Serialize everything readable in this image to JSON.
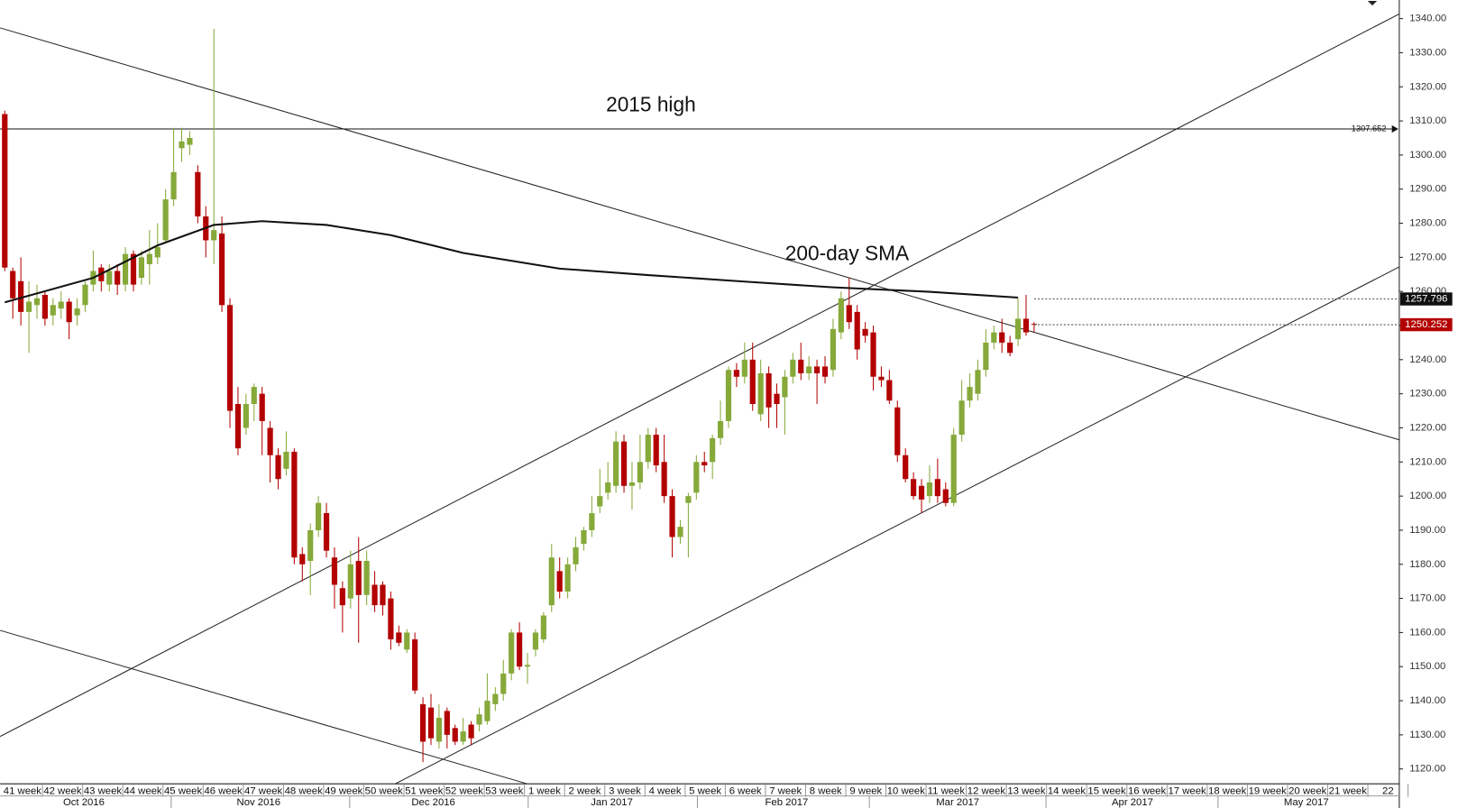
{
  "chart_data": {
    "type": "candlestick",
    "annotations": [
      "2015 high",
      "200-day SMA"
    ],
    "weeks": [
      "41 week",
      "42 week",
      "43 week",
      "44 week",
      "45 week",
      "46 week",
      "47 week",
      "48 week",
      "49 week",
      "50 week",
      "51 week",
      "52 week",
      "53 week",
      "1 week",
      "2 week",
      "3 week",
      "4 week",
      "5 week",
      "6 week",
      "7 week",
      "8 week",
      "9 week",
      "10 week",
      "11 week",
      "12 week",
      "13 week",
      "14 week",
      "15 week",
      "16 week",
      "17 week",
      "18 week",
      "19 week",
      "20 week",
      "21 week",
      "22"
    ],
    "months": [
      "Oct 2016",
      "Nov 2016",
      "Dec 2016",
      "Jan 2017",
      "Feb 2017",
      "Mar 2017",
      "Apr 2017",
      "May 2017"
    ],
    "ylim": [
      1120,
      1340
    ],
    "yticks": [
      {
        "value": 1120,
        "label": "1120.00"
      },
      {
        "value": 1130,
        "label": "1130.00"
      },
      {
        "value": 1140,
        "label": "1140.00"
      },
      {
        "value": 1150,
        "label": "1150.00"
      },
      {
        "value": 1160,
        "label": "1160.00"
      },
      {
        "value": 1170,
        "label": "1170.00"
      },
      {
        "value": 1180,
        "label": "1180.00"
      },
      {
        "value": 1190,
        "label": "1190.00"
      },
      {
        "value": 1200,
        "label": "1200.00"
      },
      {
        "value": 1210,
        "label": "1210.00"
      },
      {
        "value": 1220,
        "label": "1220.00"
      },
      {
        "value": 1230,
        "label": "1230.00"
      },
      {
        "value": 1240,
        "label": "1240.00"
      },
      {
        "value": 1250,
        "label": "1250.00"
      },
      {
        "value": 1260,
        "label": "1260.00"
      },
      {
        "value": 1270,
        "label": "1270.00"
      },
      {
        "value": 1280,
        "label": "1280.00"
      },
      {
        "value": 1290,
        "label": "1290.00"
      },
      {
        "value": 1300,
        "label": "1300.00"
      },
      {
        "value": 1310,
        "label": "1310.00"
      },
      {
        "value": 1320,
        "label": "1320.00"
      },
      {
        "value": 1330,
        "label": "1330.00"
      },
      {
        "value": 1340,
        "label": "1340.00"
      }
    ],
    "up_color": "#86a93a",
    "down_color": "#b30000",
    "hline": 1307.652,
    "price_markers": [
      {
        "value": 1257.796,
        "color": "#111111"
      },
      {
        "value": 1250.252,
        "color": "#b30000"
      }
    ],
    "sma": {
      "x": [
        0,
        11,
        19,
        26,
        32,
        40,
        48,
        57,
        69,
        80,
        92,
        103,
        115,
        126
      ],
      "values": [
        1256.8,
        1264,
        1273.5,
        1279.5,
        1280.6,
        1279.5,
        1276.5,
        1271.3,
        1266.7,
        1264.8,
        1262.9,
        1261.2,
        1259.9,
        1258.2
      ]
    },
    "candles": [
      [
        1312,
        1313,
        1266,
        1267
      ],
      [
        1266,
        1267,
        1252,
        1258
      ],
      [
        1263,
        1270,
        1250,
        1254
      ],
      [
        1254,
        1263,
        1242,
        1257
      ],
      [
        1256,
        1262,
        1252,
        1258
      ],
      [
        1259,
        1260,
        1250,
        1252
      ],
      [
        1253,
        1258,
        1250,
        1256
      ],
      [
        1255,
        1260,
        1252,
        1257
      ],
      [
        1257,
        1258,
        1246,
        1251
      ],
      [
        1253,
        1258,
        1250,
        1255
      ],
      [
        1256,
        1263,
        1254,
        1262
      ],
      [
        1262,
        1272,
        1260,
        1266
      ],
      [
        1267,
        1268,
        1260,
        1263
      ],
      [
        1262,
        1268,
        1260,
        1266
      ],
      [
        1266,
        1268,
        1259,
        1262
      ],
      [
        1262,
        1273,
        1260,
        1271
      ],
      [
        1271,
        1272,
        1260,
        1262
      ],
      [
        1264,
        1272,
        1262,
        1270
      ],
      [
        1268,
        1278,
        1262,
        1271
      ],
      [
        1270,
        1280,
        1268,
        1273
      ],
      [
        1275,
        1290,
        1274,
        1287
      ],
      [
        1287,
        1308,
        1285,
        1295
      ],
      [
        1302,
        1308,
        1298,
        1304
      ],
      [
        1303,
        1307,
        1300,
        1305
      ],
      [
        1295,
        1297,
        1280,
        1282
      ],
      [
        1282,
        1285,
        1270,
        1275
      ],
      [
        1275,
        1337,
        1268,
        1278
      ],
      [
        1277,
        1282,
        1254,
        1256
      ],
      [
        1256,
        1258,
        1220,
        1225
      ],
      [
        1227,
        1232,
        1212,
        1214
      ],
      [
        1220,
        1230,
        1218,
        1227
      ],
      [
        1227,
        1233,
        1222,
        1232
      ],
      [
        1230,
        1232,
        1212,
        1222
      ],
      [
        1220,
        1222,
        1204,
        1212
      ],
      [
        1212,
        1214,
        1202,
        1205
      ],
      [
        1208,
        1219,
        1206,
        1213
      ],
      [
        1213,
        1214,
        1180,
        1182
      ],
      [
        1183,
        1185,
        1175,
        1180
      ],
      [
        1181,
        1192,
        1171,
        1190
      ],
      [
        1190,
        1200,
        1188,
        1198
      ],
      [
        1195,
        1198,
        1182,
        1184
      ],
      [
        1182,
        1185,
        1167,
        1174
      ],
      [
        1173,
        1175,
        1160,
        1168
      ],
      [
        1170,
        1184,
        1167,
        1180
      ],
      [
        1181,
        1188,
        1157,
        1171
      ],
      [
        1171,
        1184,
        1168,
        1181
      ],
      [
        1174,
        1178,
        1166,
        1168
      ],
      [
        1174,
        1175,
        1165,
        1168
      ],
      [
        1170,
        1172,
        1155,
        1158
      ],
      [
        1160,
        1162,
        1156,
        1157
      ],
      [
        1155,
        1161,
        1154,
        1160
      ],
      [
        1158,
        1160,
        1142,
        1143
      ],
      [
        1139,
        1141,
        1122,
        1128
      ],
      [
        1138,
        1142,
        1127,
        1129
      ],
      [
        1128,
        1139,
        1126,
        1135
      ],
      [
        1137,
        1138,
        1126,
        1130
      ],
      [
        1132,
        1133,
        1127,
        1128
      ],
      [
        1128,
        1135,
        1127,
        1131
      ],
      [
        1133,
        1134,
        1127,
        1129
      ],
      [
        1133,
        1138,
        1131,
        1136
      ],
      [
        1134,
        1148,
        1133,
        1140
      ],
      [
        1139,
        1144,
        1137,
        1142
      ],
      [
        1142,
        1152,
        1140,
        1148
      ],
      [
        1148,
        1161,
        1146,
        1160
      ],
      [
        1160,
        1163,
        1149,
        1150
      ],
      [
        1150,
        1154,
        1145,
        1150.5
      ],
      [
        1155,
        1161,
        1153,
        1160
      ],
      [
        1158,
        1166,
        1157,
        1165
      ],
      [
        1168,
        1186,
        1166,
        1182
      ],
      [
        1178,
        1182,
        1170,
        1172
      ],
      [
        1172,
        1182,
        1170,
        1180
      ],
      [
        1180,
        1188,
        1178,
        1185
      ],
      [
        1186,
        1191,
        1184,
        1190
      ],
      [
        1190,
        1200,
        1188,
        1195
      ],
      [
        1197,
        1208,
        1195,
        1200
      ],
      [
        1201,
        1210,
        1199,
        1204
      ],
      [
        1203,
        1219,
        1201,
        1216
      ],
      [
        1216,
        1218,
        1201,
        1203
      ],
      [
        1203,
        1210,
        1196,
        1204
      ],
      [
        1204,
        1218,
        1202,
        1210
      ],
      [
        1210,
        1220,
        1208,
        1218
      ],
      [
        1218,
        1220,
        1207,
        1209
      ],
      [
        1210,
        1218,
        1198,
        1200
      ],
      [
        1200,
        1202,
        1182,
        1188
      ],
      [
        1188,
        1193,
        1186,
        1191
      ],
      [
        1198,
        1201,
        1182,
        1200
      ],
      [
        1201,
        1212,
        1199,
        1210
      ],
      [
        1210,
        1213,
        1207,
        1209
      ],
      [
        1210,
        1218,
        1205,
        1217
      ],
      [
        1217,
        1228,
        1215,
        1222
      ],
      [
        1222,
        1238,
        1220,
        1237
      ],
      [
        1237,
        1239,
        1232,
        1235
      ],
      [
        1235,
        1245,
        1233,
        1240
      ],
      [
        1240,
        1245,
        1225,
        1227
      ],
      [
        1224,
        1240,
        1222,
        1236
      ],
      [
        1236,
        1238,
        1220,
        1226
      ],
      [
        1230,
        1233,
        1220,
        1227
      ],
      [
        1229,
        1237,
        1218,
        1235
      ],
      [
        1235,
        1242,
        1233,
        1240
      ],
      [
        1240,
        1245,
        1234,
        1236
      ],
      [
        1236,
        1241,
        1234,
        1238
      ],
      [
        1238,
        1240,
        1227,
        1236
      ],
      [
        1238,
        1241,
        1233,
        1235
      ],
      [
        1237,
        1252,
        1235,
        1249
      ],
      [
        1248,
        1260,
        1246,
        1258
      ],
      [
        1256,
        1264,
        1249,
        1251
      ],
      [
        1254,
        1256,
        1240,
        1243
      ],
      [
        1249,
        1251,
        1245,
        1247
      ],
      [
        1248,
        1250,
        1231,
        1235
      ],
      [
        1235,
        1238,
        1232,
        1234
      ],
      [
        1234,
        1237,
        1227,
        1228
      ],
      [
        1226,
        1228,
        1210,
        1212
      ],
      [
        1212,
        1214,
        1204,
        1205
      ],
      [
        1205,
        1207,
        1199,
        1200
      ],
      [
        1203,
        1205,
        1195,
        1199
      ],
      [
        1200,
        1209,
        1198,
        1204
      ],
      [
        1205,
        1211,
        1198,
        1200
      ],
      [
        1202,
        1204,
        1197,
        1198
      ],
      [
        1198,
        1220,
        1197,
        1218
      ],
      [
        1218,
        1234,
        1216,
        1228
      ],
      [
        1228,
        1236,
        1226,
        1232
      ],
      [
        1230,
        1240,
        1228,
        1237
      ],
      [
        1237,
        1249,
        1235,
        1245
      ],
      [
        1245,
        1250,
        1243,
        1248
      ],
      [
        1248,
        1252,
        1242,
        1245
      ],
      [
        1245,
        1247,
        1241,
        1242
      ],
      [
        1246,
        1258,
        1244,
        1252
      ],
      [
        1252,
        1259,
        1247,
        1248
      ],
      [
        1250.5,
        1251,
        1248,
        1250.25
      ]
    ]
  }
}
